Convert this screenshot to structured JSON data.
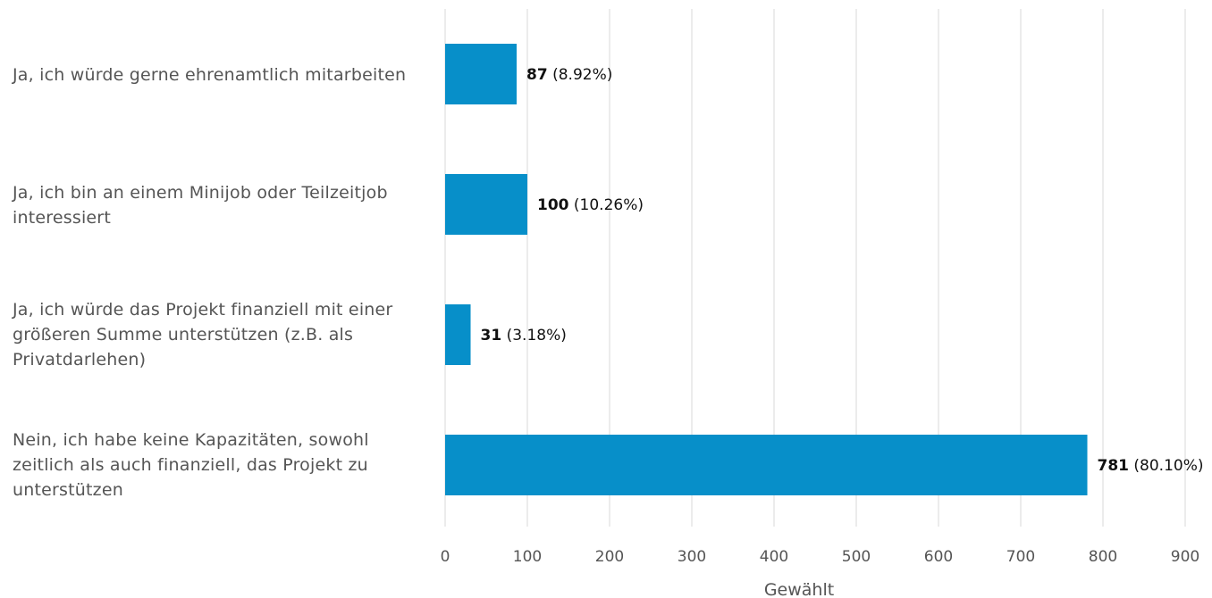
{
  "chart_data": {
    "type": "bar",
    "orientation": "horizontal",
    "categories": [
      "Ja, ich würde gerne ehrenamtlich mitarbeiten",
      "Ja, ich bin an einem Minijob oder Teilzeitjob interessiert",
      "Ja, ich würde das Projekt finanziell mit einer größeren Summe unterstützen (z.B. als Privatdarlehen)",
      "Nein, ich habe keine Kapazitäten, sowohl zeitlich als auch finanziell, das Projekt zu unterstützen"
    ],
    "values": [
      87,
      100,
      31,
      781
    ],
    "value_labels": [
      "87",
      "100",
      "31",
      "781"
    ],
    "percent_labels": [
      "(8.92%)",
      "(10.26%)",
      "(3.18%)",
      "(80.10%)"
    ],
    "xlabel": "Gewählt",
    "xlim": [
      0,
      900
    ],
    "x_ticks": [
      0,
      100,
      200,
      300,
      400,
      500,
      600,
      700,
      800,
      900
    ],
    "x_tick_labels": [
      "0",
      "100",
      "200",
      "300",
      "400",
      "500",
      "600",
      "700",
      "800",
      "900"
    ],
    "grid": true,
    "bar_color": "#078fc9",
    "grid_color": "#e6e6e6"
  }
}
